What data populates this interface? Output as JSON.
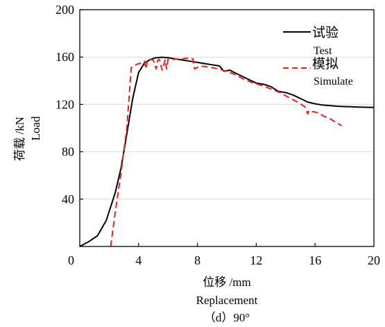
{
  "chart_data": {
    "type": "line",
    "xlabel": "位移 /mm",
    "xlabel_en": "Replacement",
    "ylabel": "荷载 /kN",
    "ylabel_en": "Load",
    "caption": "（d）90°",
    "xlim": [
      0,
      20
    ],
    "ylim": [
      0,
      200
    ],
    "xticks": [
      0,
      4,
      8,
      12,
      16,
      20
    ],
    "yticks": [
      40,
      80,
      120,
      160,
      200
    ],
    "grid": true,
    "legend_position": "top-right",
    "series": [
      {
        "name": "试验",
        "name_en": "Test",
        "color": "#000000",
        "style": "solid",
        "x": [
          0,
          0.6,
          1.2,
          1.8,
          2.4,
          2.8,
          3.2,
          3.6,
          4.0,
          4.4,
          4.8,
          5.2,
          5.6,
          6.0,
          6.5,
          7.0,
          7.5,
          8.0,
          8.5,
          9.0,
          9.5,
          9.8,
          10.2,
          10.5,
          11.0,
          11.5,
          12.0,
          12.5,
          13.0,
          13.5,
          14.0,
          14.5,
          15.0,
          15.5,
          16.0,
          16.5,
          17.0,
          17.5,
          18.0,
          18.5,
          19.0,
          19.5,
          20.0
        ],
        "y": [
          0,
          4,
          9,
          22,
          45,
          66,
          95,
          125,
          147,
          155,
          158,
          159.5,
          159.8,
          159.5,
          158.5,
          157.5,
          156.5,
          155.5,
          154.5,
          153.5,
          152.5,
          148,
          149,
          147,
          144,
          141,
          138,
          137,
          135,
          131,
          130,
          128,
          125,
          122,
          120.5,
          119.5,
          119,
          118.5,
          118.2,
          118,
          117.8,
          117.6,
          117.5
        ]
      },
      {
        "name": "模拟",
        "name_en": "Simulate",
        "color": "#e8231f",
        "style": "dashed",
        "x": [
          2.1,
          2.4,
          2.8,
          3.2,
          3.5,
          3.9,
          4.2,
          4.4,
          4.5,
          4.6,
          4.8,
          5.0,
          5.2,
          5.3,
          5.4,
          5.6,
          5.8,
          5.9,
          6.0,
          6.2,
          6.4,
          6.6,
          6.8,
          7.0,
          7.2,
          7.5,
          7.7,
          7.8,
          8.2,
          8.8,
          9.4,
          10.0,
          10.6,
          11.2,
          11.8,
          12.4,
          13.0,
          13.6,
          14.2,
          14.8,
          15.3,
          15.5,
          15.6,
          15.8,
          16.2,
          16.6,
          17.0,
          17.4,
          17.8
        ],
        "y": [
          0,
          28,
          62,
          100,
          151,
          154,
          155,
          156.5,
          150,
          157,
          158,
          157.5,
          150,
          157.5,
          158,
          149,
          157.5,
          150,
          158,
          158.5,
          158,
          158.5,
          158.5,
          158.5,
          159,
          159,
          158.5,
          150,
          152.5,
          151.5,
          150,
          148,
          145,
          141,
          138,
          136,
          133,
          130,
          126,
          122,
          118,
          112,
          115,
          114,
          113,
          110,
          108,
          105,
          102
        ]
      }
    ]
  }
}
